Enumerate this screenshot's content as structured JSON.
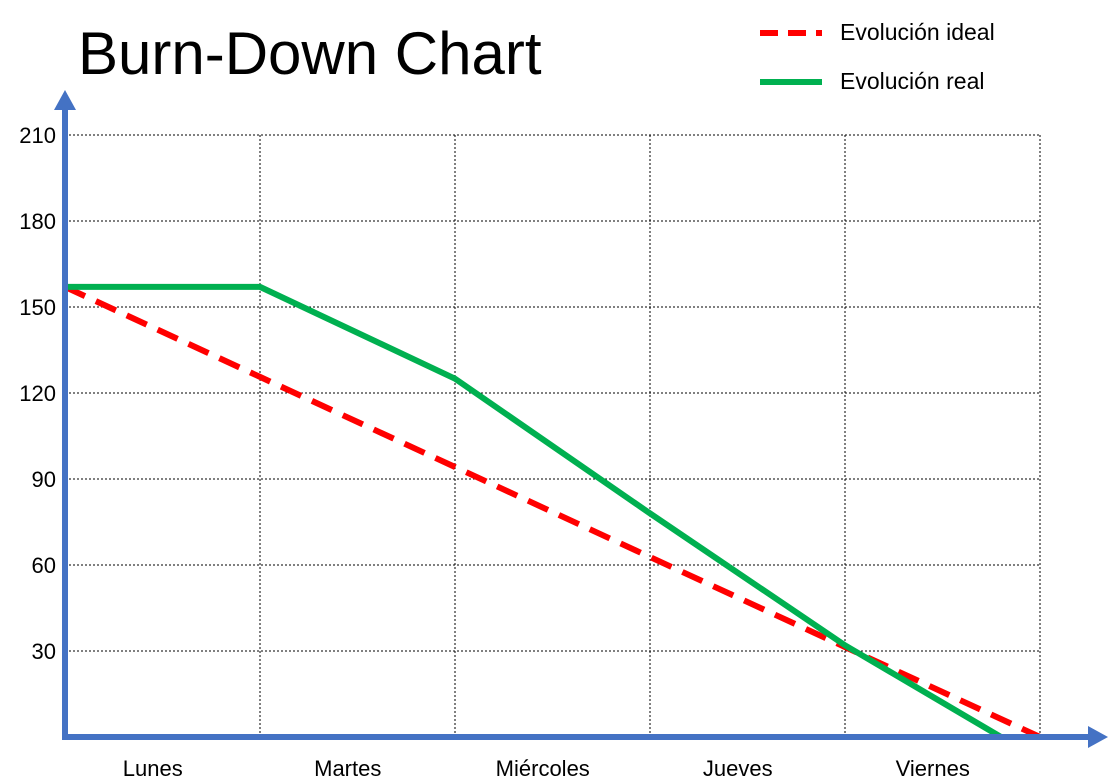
{
  "chart_data": {
    "type": "line",
    "title": "Burn-Down Chart",
    "categories": [
      "Lunes",
      "Martes",
      "Miércoles",
      "Jueves",
      "Viernes"
    ],
    "x": [
      0,
      1,
      2,
      3,
      4,
      5
    ],
    "yticks": [
      30,
      60,
      90,
      120,
      150,
      180,
      210
    ],
    "ylim": [
      0,
      210
    ],
    "xlim": [
      0,
      5
    ],
    "grid": true,
    "legend_position": "top-right",
    "series": [
      {
        "name": "Evolución ideal",
        "color": "#ff0000",
        "style": "dashed",
        "points": [
          [
            0,
            157
          ],
          [
            1,
            125.6
          ],
          [
            2,
            94.2
          ],
          [
            3,
            62.8
          ],
          [
            4,
            31.4
          ],
          [
            5,
            0
          ]
        ]
      },
      {
        "name": "Evolución real",
        "color": "#00b050",
        "style": "solid",
        "points": [
          [
            0,
            157
          ],
          [
            1,
            157
          ],
          [
            2,
            125
          ],
          [
            3,
            78
          ],
          [
            4,
            32
          ],
          [
            4.8,
            0
          ]
        ]
      }
    ],
    "axis_color": "#4472c4"
  }
}
